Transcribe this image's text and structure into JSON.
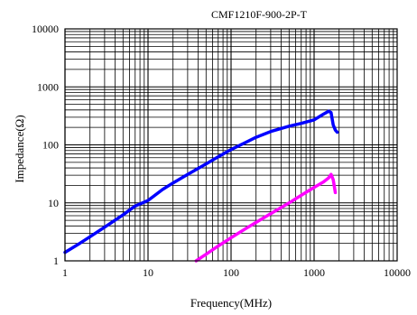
{
  "chart_data": {
    "type": "line",
    "title": "CMF1210F-900-2P-T",
    "xlabel": "Frequency(MHz)",
    "ylabel": "Impedance(Ω)",
    "x_scale": "log",
    "y_scale": "log",
    "xlim": [
      1,
      10000
    ],
    "ylim": [
      1,
      10000
    ],
    "x_ticks": [
      1,
      10,
      100,
      1000,
      10000
    ],
    "x_tick_labels": [
      "1",
      "10",
      "100",
      "1000",
      "10000"
    ],
    "y_ticks": [
      1,
      10,
      100,
      1000,
      10000
    ],
    "y_tick_labels": [
      "1",
      "10",
      "100",
      "1000",
      "10000"
    ],
    "grid": true,
    "series": [
      {
        "color": "#0000ff",
        "x": [
          1,
          1.5,
          2,
          3,
          5,
          7,
          10,
          15,
          20,
          30,
          50,
          70,
          100,
          150,
          200,
          300,
          500,
          700,
          1000,
          1300,
          1500,
          1600,
          1700,
          1800,
          1900
        ],
        "y": [
          1.4,
          2.0,
          2.6,
          3.8,
          6.2,
          8.8,
          11,
          17,
          22,
          31,
          47,
          62,
          83,
          110,
          135,
          170,
          210,
          235,
          270,
          340,
          380,
          360,
          220,
          180,
          165
        ]
      },
      {
        "color": "#ff00ff",
        "x": [
          38,
          50,
          70,
          100,
          150,
          200,
          300,
          500,
          700,
          1000,
          1300,
          1500,
          1600,
          1700,
          1800
        ],
        "y": [
          1.0,
          1.3,
          1.8,
          2.5,
          3.6,
          4.6,
          6.5,
          10,
          13.5,
          18.5,
          23,
          27,
          31,
          25,
          15
        ]
      }
    ]
  }
}
